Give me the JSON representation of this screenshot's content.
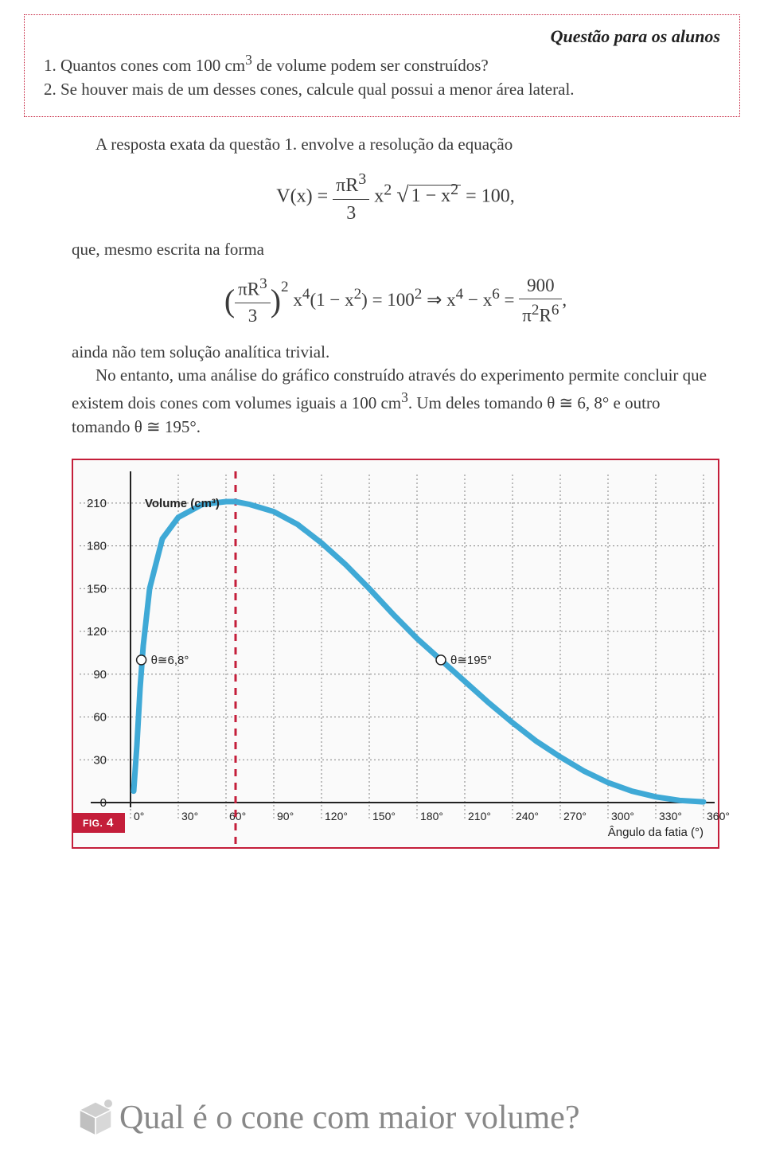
{
  "question_box": {
    "header": "Questão para os alunos",
    "q1_num": "1.",
    "q1_a": "Quantos cones com ",
    "q1_vol": "100 cm",
    "q1_exp": "3",
    "q1_b": " de volume podem ser construídos?",
    "q2_num": "2.",
    "q2": "Se houver mais de um desses cones, calcule qual possui a menor área lateral."
  },
  "body": {
    "p1": "A resposta exata da questão 1. envolve a resolução da equação",
    "eq1_left": "V(x) = ",
    "eq1_num": "πR",
    "eq1_numexp": "3",
    "eq1_den": "3",
    "eq1_mid": " x",
    "eq1_exp2": "2",
    "eq1_sqrt": "1 − x",
    "eq1_sqrtexp": "2",
    "eq1_right": " = 100,",
    "p2": "que, mesmo escrita na forma",
    "eq2_lparen": "(",
    "eq2_num": "πR",
    "eq2_numexp": "3",
    "eq2_den": "3",
    "eq2_rparen": ")",
    "eq2_pexp": "2",
    "eq2_a": " x",
    "eq2_a4": "4",
    "eq2_b": "(1 − x",
    "eq2_b2": "2",
    "eq2_c": ") = 100",
    "eq2_c2": "2",
    "eq2_imp": " ⇒ x",
    "eq2_d4": "4",
    "eq2_e": " − x",
    "eq2_e6": "6",
    "eq2_f": " = ",
    "eq2_rnum": "900",
    "eq2_rden_a": "π",
    "eq2_rden_a2": "2",
    "eq2_rden_b": "R",
    "eq2_rden_b6": "6",
    "eq2_comma": ",",
    "p3": "ainda não tem solução analítica trivial.",
    "p4a": "No entanto, uma análise do gráfico construído através do experimento permite concluir que existem dois cones com volumes iguais a ",
    "p4_vol": "100 cm",
    "p4_exp": "3",
    "p4b": ". Um deles tomando θ ≅ 6, 8° e outro tomando θ ≅ 195°."
  },
  "chart": {
    "type": "line",
    "title": "Volume (cm³)",
    "x_axis_label": "Ângulo da fatia (°)",
    "fig_label_prefix": "FIG.",
    "fig_label_num": "4",
    "x_ticks": [
      "0°",
      "30°",
      "60°",
      "90°",
      "120°",
      "150°",
      "180°",
      "210°",
      "240°",
      "270°",
      "300°",
      "330°",
      "360°"
    ],
    "y_ticks": [
      "0",
      "30",
      "60",
      "90",
      "120",
      "150",
      "180",
      "210"
    ],
    "xlim": [
      0,
      360
    ],
    "ylim": [
      0,
      230
    ],
    "curve_color": "#3fa9d6",
    "grid_color": "#808080",
    "axis_color": "#222222",
    "dashed_color": "#c41e3a",
    "bg_color": "#fafafa",
    "annotation1": "θ≅6,8°",
    "annotation2": "θ≅195°",
    "marker1_x": 6.8,
    "marker1_y": 100,
    "marker2_x": 195,
    "marker2_y": 100,
    "dashed_x": 66,
    "curve_points": [
      [
        2,
        8
      ],
      [
        4,
        40
      ],
      [
        6,
        80
      ],
      [
        8,
        110
      ],
      [
        12,
        150
      ],
      [
        20,
        185
      ],
      [
        30,
        200
      ],
      [
        45,
        209
      ],
      [
        60,
        211
      ],
      [
        66,
        211
      ],
      [
        75,
        209
      ],
      [
        90,
        204
      ],
      [
        105,
        195
      ],
      [
        120,
        182
      ],
      [
        135,
        167
      ],
      [
        150,
        150
      ],
      [
        165,
        132
      ],
      [
        180,
        115
      ],
      [
        195,
        100
      ],
      [
        210,
        85
      ],
      [
        225,
        70
      ],
      [
        240,
        56
      ],
      [
        255,
        43
      ],
      [
        270,
        32
      ],
      [
        285,
        22
      ],
      [
        300,
        14
      ],
      [
        315,
        8
      ],
      [
        330,
        4
      ],
      [
        345,
        1.5
      ],
      [
        360,
        0.5
      ]
    ]
  },
  "footer": {
    "title": "Qual é o cone com maior volume?",
    "icon_color": "#cfcfcf"
  }
}
